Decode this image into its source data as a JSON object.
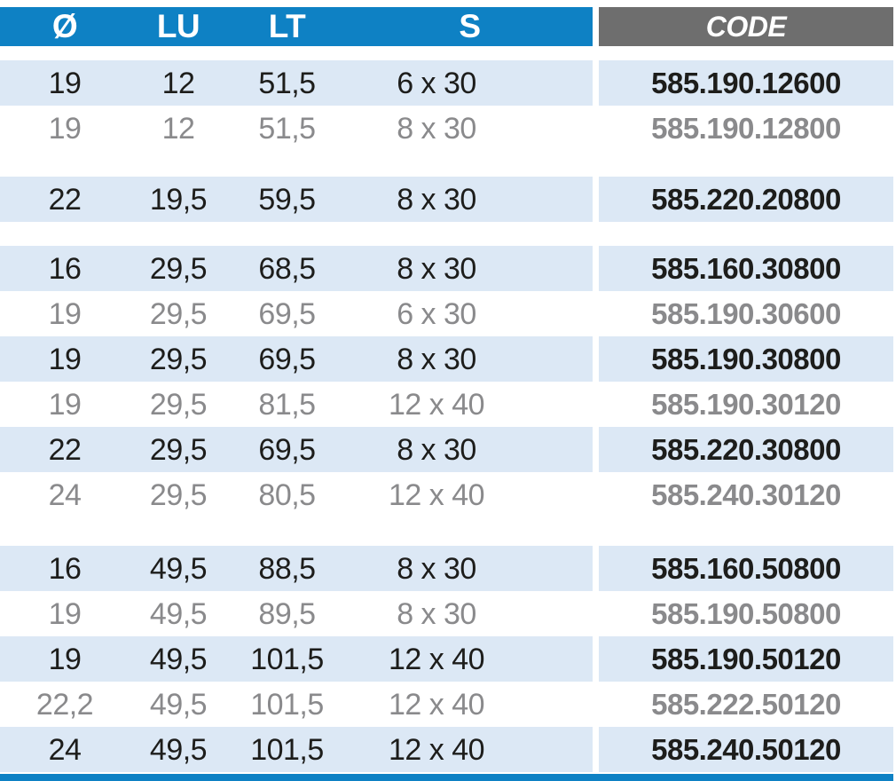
{
  "colors": {
    "header_blue": "#0e81c4",
    "header_gray": "#6e6e6e",
    "row_blue": "#dce8f5",
    "row_white": "#ffffff",
    "text_dark": "#1d1d1b",
    "text_gray": "#8a8a8c",
    "header_text": "#ffffff",
    "bottom_bar": "#0e81c4"
  },
  "table": {
    "columns": [
      {
        "key": "d",
        "label": "Ø"
      },
      {
        "key": "lu",
        "label": "LU"
      },
      {
        "key": "lt",
        "label": "LT"
      },
      {
        "key": "s",
        "label": "S"
      },
      {
        "key": "code",
        "label": "CODE"
      }
    ],
    "groups": [
      {
        "rows": [
          {
            "d": "19",
            "lu": "12",
            "lt": "51,5",
            "s": "6 x 30",
            "code": "585.190.12600"
          },
          {
            "d": "19",
            "lu": "12",
            "lt": "51,5",
            "s": "8 x 30",
            "code": "585.190.12800"
          }
        ]
      },
      {
        "rows": [
          {
            "d": "22",
            "lu": "19,5",
            "lt": "59,5",
            "s": "8 x 30",
            "code": "585.220.20800"
          }
        ]
      },
      {
        "rows": [
          {
            "d": "16",
            "lu": "29,5",
            "lt": "68,5",
            "s": "8 x 30",
            "code": "585.160.30800"
          },
          {
            "d": "19",
            "lu": "29,5",
            "lt": "69,5",
            "s": "6 x 30",
            "code": "585.190.30600"
          },
          {
            "d": "19",
            "lu": "29,5",
            "lt": "69,5",
            "s": "8 x 30",
            "code": "585.190.30800"
          },
          {
            "d": "19",
            "lu": "29,5",
            "lt": "81,5",
            "s": "12 x 40",
            "code": "585.190.30120"
          },
          {
            "d": "22",
            "lu": "29,5",
            "lt": "69,5",
            "s": "8 x 30",
            "code": "585.220.30800"
          },
          {
            "d": "24",
            "lu": "29,5",
            "lt": "80,5",
            "s": "12 x 40",
            "code": "585.240.30120"
          }
        ]
      },
      {
        "rows": [
          {
            "d": "16",
            "lu": "49,5",
            "lt": "88,5",
            "s": "8 x 30",
            "code": "585.160.50800"
          },
          {
            "d": "19",
            "lu": "49,5",
            "lt": "89,5",
            "s": "8 x 30",
            "code": "585.190.50800"
          },
          {
            "d": "19",
            "lu": "49,5",
            "lt": "101,5",
            "s": "12 x 40",
            "code": "585.190.50120"
          },
          {
            "d": "22,2",
            "lu": "49,5",
            "lt": "101,5",
            "s": "12 x 40",
            "code": "585.222.50120"
          },
          {
            "d": "24",
            "lu": "49,5",
            "lt": "101,5",
            "s": "12 x 40",
            "code": "585.240.50120"
          }
        ]
      }
    ]
  }
}
